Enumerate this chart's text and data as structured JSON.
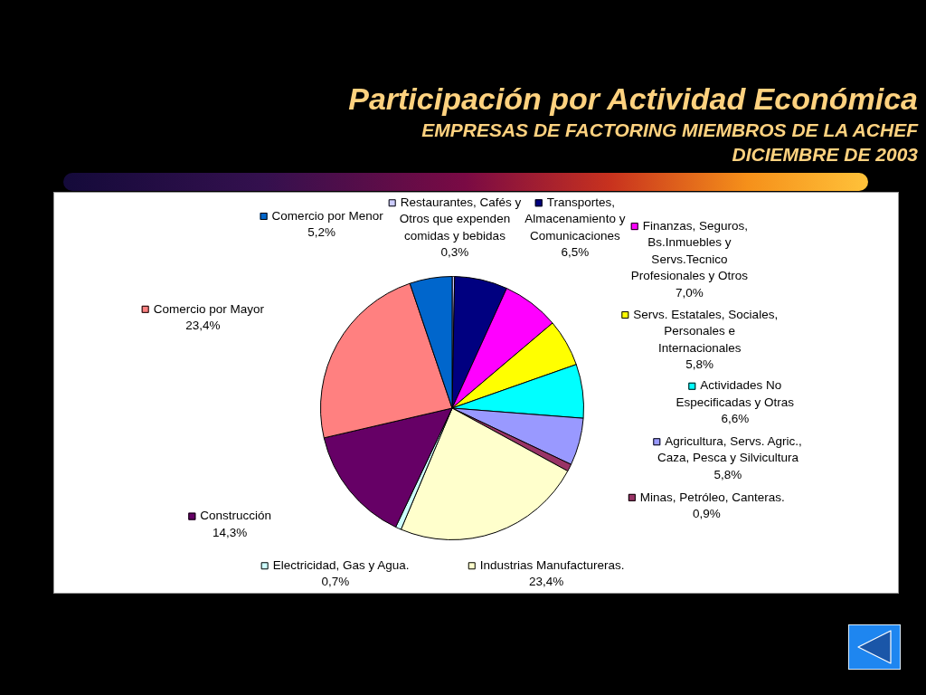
{
  "chart_data": {
    "type": "pie",
    "title": "Participación por Actividad Económica",
    "subtitle": "EMPRESAS DE FACTORING MIEMBROS DE LA ACHEF DICIEMBRE DE 2003",
    "categories": [
      "Restaurantes, Cafés y Otros que expenden comidas y bebidas",
      "Transportes, Almacenamiento y Comunicaciones",
      "Finanzas, Seguros, Bs.Inmuebles y Servs.Tecnico Profesionales y Otros",
      "Servs. Estatales, Sociales, Personales e Internacionales",
      "Actividades No Especificadas y Otras",
      "Agricultura, Servs. Agric., Caza, Pesca y Silvicultura",
      "Minas, Petróleo, Canteras.",
      "Industrias Manufactureras.",
      "Electricidad, Gas y Agua.",
      "Construcción",
      "Comercio por Mayor",
      "Comercio por Menor"
    ],
    "values": [
      0.3,
      6.5,
      7.0,
      5.8,
      6.6,
      5.8,
      0.9,
      23.4,
      0.7,
      14.3,
      23.4,
      5.2
    ],
    "colors": [
      "#ccccff",
      "#000080",
      "#ff00ff",
      "#ffff00",
      "#00ffff",
      "#9999ff",
      "#993366",
      "#ffffcc",
      "#ccffff",
      "#660066",
      "#ff8080",
      "#0066cc"
    ],
    "value_labels": [
      "0,3%",
      "6,5%",
      "7,0%",
      "5,8%",
      "6,6%",
      "5,8%",
      "0,9%",
      "23,4%",
      "0,7%",
      "14,3%",
      "23,4%",
      "5,2%"
    ],
    "legend": true
  }
}
